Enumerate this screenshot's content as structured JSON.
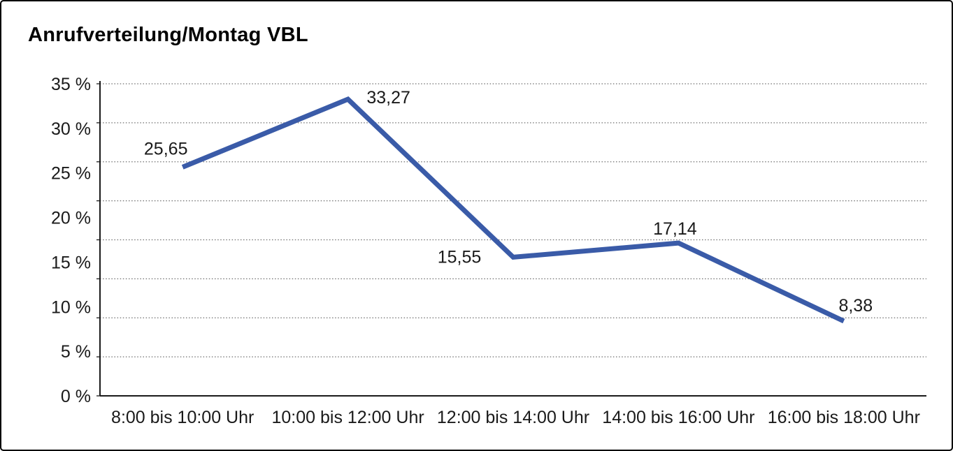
{
  "window": {
    "title": "Anrufverteilung/Montag VBL"
  },
  "chart_data": {
    "type": "line",
    "title": "Anrufverteilung/Montag VBL",
    "categories": [
      "8:00 bis 10:00 Uhr",
      "10:00 bis 12:00 Uhr",
      "12:00 bis 14:00 Uhr",
      "14:00 bis 16:00 Uhr",
      "16:00 bis 18:00 Uhr"
    ],
    "values": [
      25.65,
      33.27,
      15.55,
      17.14,
      8.38
    ],
    "data_labels": [
      "25,65",
      "33,27",
      "15,55",
      "17,14",
      "8,38"
    ],
    "xlabel": "",
    "ylabel": "",
    "ylim": [
      0,
      35
    ],
    "ytick_values": [
      0,
      5,
      10,
      15,
      20,
      25,
      30,
      35
    ],
    "ytick_suffix": " %",
    "grid": "horizontal-dotted",
    "gridline_count": 9,
    "legend": "none",
    "series_name": "Anrufverteilung Montag VBL",
    "colors": {
      "series_line": "#3A5BA8",
      "gridline": "#6e6e6e",
      "axis": "#1a1a1a",
      "text": "#1a1a1a",
      "frame_border": "#000000",
      "background": "#ffffff"
    }
  }
}
